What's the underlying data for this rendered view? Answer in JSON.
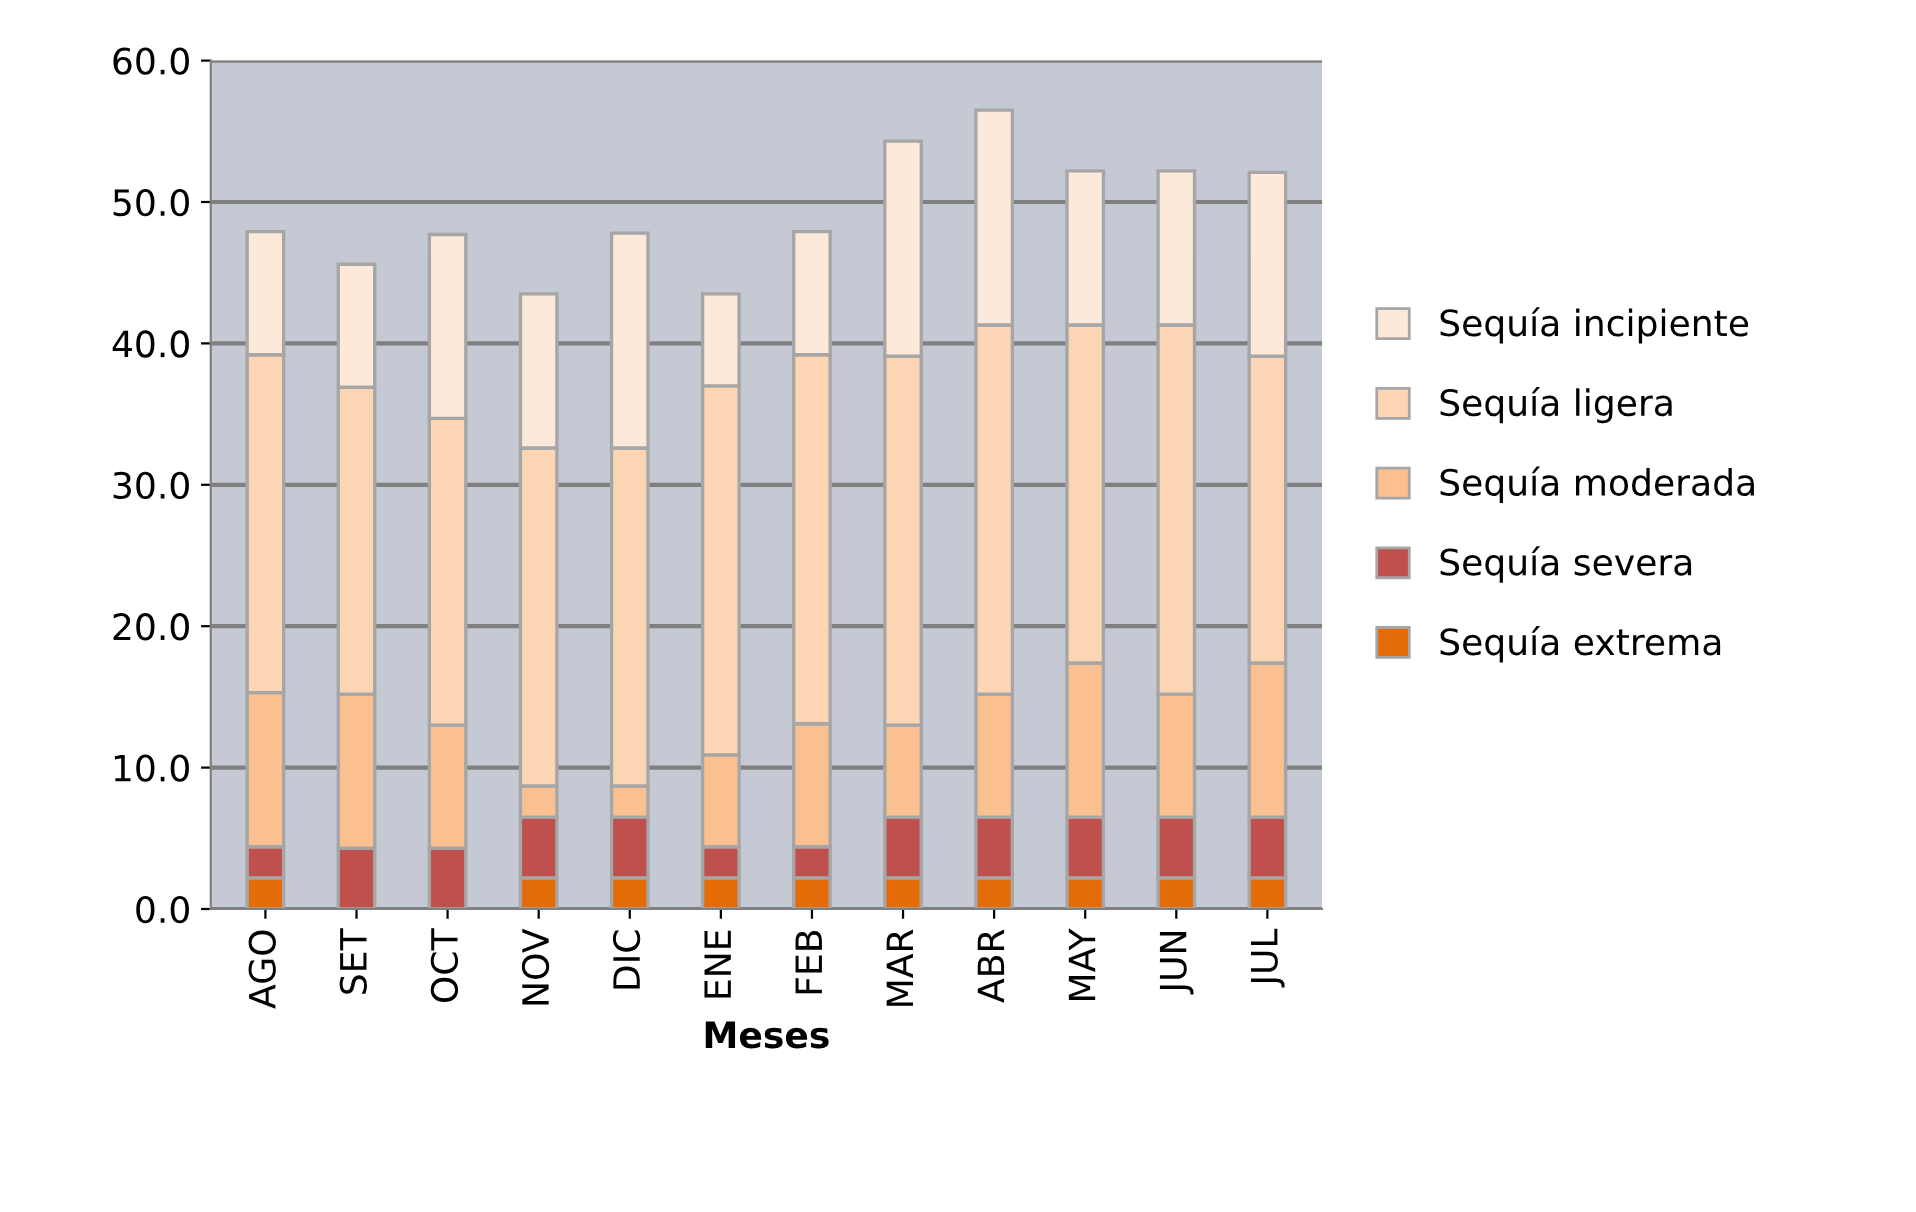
{
  "chart_data": {
    "type": "bar",
    "stacked": true,
    "xlabel": "Meses",
    "categories": [
      "AGO",
      "SET",
      "OCT",
      "NOV",
      "DIC",
      "ENE",
      "FEB",
      "MAR",
      "ABR",
      "MAY",
      "JUN",
      "JUL"
    ],
    "series": [
      {
        "name": "Sequía extrema",
        "color": "#e36c09",
        "values": [
          2.2,
          0,
          0,
          2.2,
          2.2,
          2.2,
          2.2,
          2.2,
          2.2,
          2.2,
          2.2,
          2.2
        ]
      },
      {
        "name": "Sequía severa",
        "color": "#c0504d",
        "values": [
          2.2,
          4.3,
          4.3,
          4.3,
          4.3,
          2.2,
          2.2,
          4.3,
          4.3,
          4.3,
          4.3,
          4.3
        ]
      },
      {
        "name": "Sequía moderada",
        "color": "#fac090",
        "values": [
          10.9,
          10.9,
          8.7,
          2.2,
          2.2,
          6.5,
          8.7,
          6.5,
          8.7,
          10.9,
          8.7,
          10.9
        ]
      },
      {
        "name": "Sequía ligera",
        "color": "#fcd5b4",
        "values": [
          23.9,
          21.7,
          21.7,
          23.9,
          23.9,
          26.1,
          26.1,
          26.1,
          26.1,
          23.9,
          26.1,
          21.7
        ]
      },
      {
        "name": "Sequía incipiente",
        "color": "#fde9d9",
        "values": [
          8.7,
          8.7,
          13.0,
          10.9,
          15.2,
          6.5,
          8.7,
          15.2,
          15.2,
          10.9,
          10.9,
          13.0
        ]
      }
    ],
    "ylim": [
      0,
      60
    ],
    "yticks": [
      {
        "value": 0,
        "label": "0.0"
      },
      {
        "value": 10,
        "label": "10.0"
      },
      {
        "value": 20,
        "label": "20.0"
      },
      {
        "value": 30,
        "label": "30.0"
      },
      {
        "value": 40,
        "label": "40.0"
      },
      {
        "value": 50,
        "label": "50.0"
      },
      {
        "value": 60,
        "label": "60.0"
      }
    ],
    "grid": "y",
    "legend": "right"
  }
}
